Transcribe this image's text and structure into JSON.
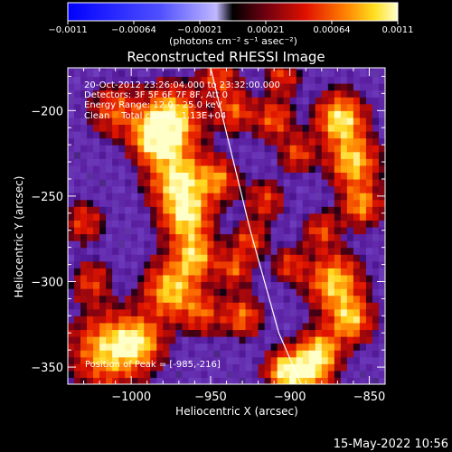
{
  "chart_data": {
    "type": "heatmap",
    "title": "Reconstructed RHESSI Image",
    "xlabel": "Heliocentric X (arcsec)",
    "ylabel": "Heliocentric Y (arcsec)",
    "xlim": [
      -1040,
      -840
    ],
    "ylim": [
      -360,
      -175
    ],
    "x_ticks": [
      -1000,
      -950,
      -900,
      -850
    ],
    "x_tick_labels": [
      "−1000",
      "−950",
      "−900",
      "−850"
    ],
    "y_ticks": [
      -200,
      -250,
      -300,
      -350
    ],
    "y_tick_labels": [
      "−200",
      "−250",
      "−300",
      "−350"
    ],
    "colorbar": {
      "ticks": [
        "-0.0011",
        "-0.00064",
        "-0.00021",
        "0.00021",
        "0.00064",
        "0.0011"
      ],
      "units": "(photons cm⁻² s⁻¹ asec⁻²)",
      "range": [
        -0.0011,
        0.0011
      ]
    },
    "info_lines": [
      "20-Oct-2012 23:26:04.000 to 23:32:00.000",
      "Detectors: 3F 5F 6F 7F 8F, Att 0",
      "Energy Range: 12.0 - 25.0 keV",
      "Clean    Total counts: 1.13E+04"
    ],
    "peak_label": "Position of Peak = [-985,-216]",
    "peak": [
      -985,
      -216
    ],
    "limb_curve": [
      [
        -950,
        -175
      ],
      [
        -925,
        -270
      ],
      [
        -907,
        -330
      ],
      [
        -893,
        -360
      ]
    ],
    "hotspots": [
      [
        -975,
        -205,
        1.0,
        12
      ],
      [
        -985,
        -216,
        1.0,
        9
      ],
      [
        -970,
        -240,
        0.95,
        12
      ],
      [
        -965,
        -262,
        0.85,
        10
      ],
      [
        -960,
        -285,
        0.8,
        9
      ],
      [
        -945,
        -240,
        0.6,
        8
      ],
      [
        -1010,
        -200,
        0.55,
        10
      ],
      [
        -1015,
        -340,
        0.85,
        14
      ],
      [
        -995,
        -335,
        0.75,
        10
      ],
      [
        -975,
        -305,
        0.85,
        11
      ],
      [
        -955,
        -318,
        0.5,
        8
      ],
      [
        -935,
        -292,
        0.55,
        7
      ],
      [
        -925,
        -275,
        0.5,
        7
      ],
      [
        -915,
        -252,
        0.45,
        8
      ],
      [
        -910,
        -205,
        0.55,
        8
      ],
      [
        -895,
        -225,
        0.5,
        7
      ],
      [
        -868,
        -205,
        0.95,
        10
      ],
      [
        -860,
        -230,
        0.85,
        10
      ],
      [
        -855,
        -255,
        0.7,
        8
      ],
      [
        -872,
        -300,
        0.85,
        11
      ],
      [
        -862,
        -322,
        0.8,
        9
      ],
      [
        -880,
        -340,
        0.7,
        8
      ],
      [
        -890,
        -352,
        0.95,
        10
      ],
      [
        -905,
        -352,
        0.7,
        7
      ],
      [
        -930,
        -320,
        0.6,
        8
      ],
      [
        -1030,
        -265,
        0.45,
        8
      ],
      [
        -1025,
        -300,
        0.45,
        8
      ],
      [
        -935,
        -200,
        0.55,
        8
      ],
      [
        -945,
        -180,
        0.5,
        8
      ],
      [
        -905,
        -180,
        0.45,
        7
      ],
      [
        -880,
        -270,
        0.5,
        7
      ],
      [
        -900,
        -290,
        0.45,
        7
      ]
    ]
  },
  "footer": {
    "timestamp": "15-May-2022 10:56"
  }
}
